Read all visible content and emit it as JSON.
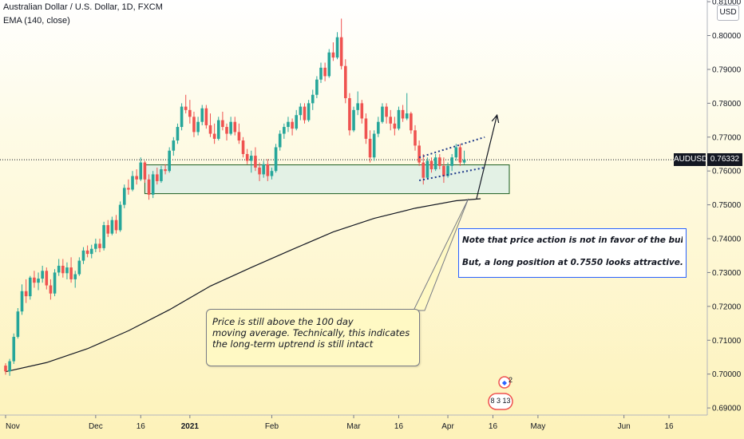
{
  "header": {
    "title": "Australian Dollar / U.S. Dollar, 1D, FXCM",
    "indicator": "EMA (140, close)",
    "currency_button": "USD"
  },
  "annotations": {
    "note_line1": "Note that price action is not in favor of the bulls.",
    "note_line2": "But, a long position at 0.7550 looks attractive.",
    "callout_line1": "Price is still above the 100 day",
    "callout_line2": "moving average. Technically, this indicates",
    "callout_line3": "the long-term uptrend is still intact"
  },
  "price_tag": {
    "symbol": "AUDUSD",
    "value": "0.76332"
  },
  "events": {
    "badge_top": "2",
    "badge_bottom": "8 3 13"
  },
  "colors": {
    "up": "#26a69a",
    "down": "#ef5350",
    "ema": "#131722",
    "zone_fill": "#e0efe6",
    "zone_border": "#1b5e20",
    "accent": "#2962ff"
  },
  "chart_data": {
    "type": "candlestick",
    "title": "Australian Dollar / U.S. Dollar, 1D, FXCM",
    "ylim": [
      0.6879,
      0.8105
    ],
    "y_ticks": [
      0.69,
      0.7,
      0.71,
      0.72,
      0.73,
      0.74,
      0.75,
      0.76,
      0.77,
      0.78,
      0.79,
      0.8,
      0.81
    ],
    "y_tick_labels": [
      "0.69000",
      "0.70000",
      "0.71000",
      "0.72000",
      "0.73000",
      "0.74000",
      "0.75000",
      "0.76000",
      "0.77000",
      "0.78000",
      "0.79000",
      "0.80000",
      "0.81000"
    ],
    "x_ticks": [
      {
        "label": "Nov",
        "bar": 0
      },
      {
        "label": "Dec",
        "bar": 22
      },
      {
        "label": "16",
        "bar": 33
      },
      {
        "label": "2021",
        "bar": 45
      },
      {
        "label": "Feb",
        "bar": 65
      },
      {
        "label": "Mar",
        "bar": 85
      },
      {
        "label": "16",
        "bar": 96
      },
      {
        "label": "Apr",
        "bar": 108
      },
      {
        "label": "16",
        "bar": 119
      },
      {
        "label": "May",
        "bar": 130
      },
      {
        "label": "Jun",
        "bar": 151
      },
      {
        "label": "16",
        "bar": 162
      }
    ],
    "last_price": 0.76332,
    "candles": [
      [
        0.7025,
        0.7032,
        0.6998,
        0.7008
      ],
      [
        0.7008,
        0.7045,
        0.6995,
        0.7038
      ],
      [
        0.7038,
        0.712,
        0.703,
        0.711
      ],
      [
        0.711,
        0.7195,
        0.7105,
        0.7185
      ],
      [
        0.7185,
        0.7265,
        0.7175,
        0.7245
      ],
      [
        0.7245,
        0.728,
        0.721,
        0.723
      ],
      [
        0.723,
        0.729,
        0.722,
        0.7285
      ],
      [
        0.7285,
        0.7305,
        0.7255,
        0.727
      ],
      [
        0.727,
        0.73,
        0.7248,
        0.7282
      ],
      [
        0.7282,
        0.732,
        0.727,
        0.7305
      ],
      [
        0.7305,
        0.7315,
        0.725,
        0.7262
      ],
      [
        0.7262,
        0.728,
        0.722,
        0.7238
      ],
      [
        0.7238,
        0.731,
        0.723,
        0.73
      ],
      [
        0.73,
        0.734,
        0.729,
        0.732
      ],
      [
        0.732,
        0.734,
        0.7285,
        0.7298
      ],
      [
        0.7298,
        0.733,
        0.728,
        0.7315
      ],
      [
        0.7315,
        0.7345,
        0.727,
        0.728
      ],
      [
        0.728,
        0.7305,
        0.7255,
        0.7295
      ],
      [
        0.7295,
        0.7345,
        0.729,
        0.7335
      ],
      [
        0.7335,
        0.7375,
        0.7325,
        0.7365
      ],
      [
        0.7365,
        0.738,
        0.7345,
        0.7355
      ],
      [
        0.7355,
        0.7382,
        0.7342,
        0.737
      ],
      [
        0.737,
        0.74,
        0.736,
        0.7385
      ],
      [
        0.7385,
        0.74,
        0.736,
        0.7372
      ],
      [
        0.7372,
        0.745,
        0.7365,
        0.744
      ],
      [
        0.744,
        0.7455,
        0.7405,
        0.7415
      ],
      [
        0.7415,
        0.7465,
        0.741,
        0.7455
      ],
      [
        0.7455,
        0.747,
        0.7415,
        0.7425
      ],
      [
        0.7425,
        0.751,
        0.742,
        0.75
      ],
      [
        0.75,
        0.756,
        0.749,
        0.755
      ],
      [
        0.755,
        0.7575,
        0.753,
        0.7545
      ],
      [
        0.7545,
        0.76,
        0.754,
        0.7585
      ],
      [
        0.7585,
        0.7605,
        0.756,
        0.7575
      ],
      [
        0.7575,
        0.764,
        0.757,
        0.7625
      ],
      [
        0.7625,
        0.763,
        0.7565,
        0.7575
      ],
      [
        0.7575,
        0.759,
        0.7515,
        0.753
      ],
      [
        0.753,
        0.76,
        0.752,
        0.759
      ],
      [
        0.759,
        0.761,
        0.756,
        0.757
      ],
      [
        0.757,
        0.7615,
        0.7565,
        0.7605
      ],
      [
        0.7605,
        0.762,
        0.759,
        0.76
      ],
      [
        0.76,
        0.767,
        0.7595,
        0.766
      ],
      [
        0.766,
        0.77,
        0.7645,
        0.769
      ],
      [
        0.769,
        0.774,
        0.768,
        0.773
      ],
      [
        0.773,
        0.78,
        0.772,
        0.779
      ],
      [
        0.779,
        0.7825,
        0.777,
        0.778
      ],
      [
        0.778,
        0.781,
        0.774,
        0.776
      ],
      [
        0.776,
        0.7775,
        0.77,
        0.7715
      ],
      [
        0.7715,
        0.776,
        0.7705,
        0.7745
      ],
      [
        0.7745,
        0.7795,
        0.7735,
        0.7785
      ],
      [
        0.7785,
        0.7795,
        0.7725,
        0.7735
      ],
      [
        0.7735,
        0.777,
        0.77,
        0.771
      ],
      [
        0.771,
        0.774,
        0.768,
        0.7695
      ],
      [
        0.7695,
        0.776,
        0.769,
        0.775
      ],
      [
        0.775,
        0.7775,
        0.772,
        0.773
      ],
      [
        0.773,
        0.774,
        0.769,
        0.771
      ],
      [
        0.771,
        0.776,
        0.7705,
        0.7745
      ],
      [
        0.7745,
        0.776,
        0.7705,
        0.7715
      ],
      [
        0.7715,
        0.774,
        0.768,
        0.769
      ],
      [
        0.769,
        0.77,
        0.764,
        0.765
      ],
      [
        0.765,
        0.7665,
        0.762,
        0.763
      ],
      [
        0.763,
        0.766,
        0.7595,
        0.7645
      ],
      [
        0.7645,
        0.767,
        0.76,
        0.761
      ],
      [
        0.761,
        0.7625,
        0.757,
        0.759
      ],
      [
        0.759,
        0.763,
        0.758,
        0.762
      ],
      [
        0.762,
        0.7635,
        0.757,
        0.7585
      ],
      [
        0.7585,
        0.761,
        0.7575,
        0.76
      ],
      [
        0.76,
        0.768,
        0.7595,
        0.767
      ],
      [
        0.767,
        0.772,
        0.766,
        0.771
      ],
      [
        0.771,
        0.774,
        0.7695,
        0.773
      ],
      [
        0.773,
        0.776,
        0.7715,
        0.7745
      ],
      [
        0.7745,
        0.7755,
        0.7705,
        0.7725
      ],
      [
        0.7725,
        0.778,
        0.772,
        0.7765
      ],
      [
        0.7765,
        0.78,
        0.775,
        0.779
      ],
      [
        0.779,
        0.78,
        0.774,
        0.775
      ],
      [
        0.775,
        0.781,
        0.7745,
        0.78
      ],
      [
        0.78,
        0.784,
        0.778,
        0.7825
      ],
      [
        0.7825,
        0.788,
        0.7815,
        0.787
      ],
      [
        0.787,
        0.792,
        0.786,
        0.7905
      ],
      [
        0.7905,
        0.792,
        0.7865,
        0.788
      ],
      [
        0.788,
        0.796,
        0.7875,
        0.795
      ],
      [
        0.795,
        0.798,
        0.7925,
        0.7935
      ],
      [
        0.7935,
        0.801,
        0.793,
        0.7995
      ],
      [
        0.7995,
        0.805,
        0.79,
        0.791
      ],
      [
        0.791,
        0.793,
        0.78,
        0.7815
      ],
      [
        0.7815,
        0.783,
        0.7705,
        0.772
      ],
      [
        0.772,
        0.779,
        0.7715,
        0.778
      ],
      [
        0.778,
        0.7835,
        0.7765,
        0.78
      ],
      [
        0.78,
        0.781,
        0.774,
        0.7755
      ],
      [
        0.7755,
        0.777,
        0.768,
        0.7695
      ],
      [
        0.7695,
        0.772,
        0.7625,
        0.764
      ],
      [
        0.764,
        0.772,
        0.763,
        0.771
      ],
      [
        0.771,
        0.776,
        0.77,
        0.7745
      ],
      [
        0.7745,
        0.78,
        0.774,
        0.779
      ],
      [
        0.779,
        0.78,
        0.774,
        0.776
      ],
      [
        0.776,
        0.778,
        0.772,
        0.774
      ],
      [
        0.774,
        0.776,
        0.7705,
        0.7725
      ],
      [
        0.7725,
        0.779,
        0.772,
        0.778
      ],
      [
        0.778,
        0.7795,
        0.7745,
        0.7755
      ],
      [
        0.7755,
        0.783,
        0.775,
        0.777
      ],
      [
        0.777,
        0.7775,
        0.771,
        0.772
      ],
      [
        0.772,
        0.7735,
        0.766,
        0.7675
      ],
      [
        0.7675,
        0.769,
        0.7615,
        0.7625
      ],
      [
        0.7625,
        0.765,
        0.756,
        0.758
      ],
      [
        0.758,
        0.764,
        0.7575,
        0.763
      ],
      [
        0.763,
        0.764,
        0.7595,
        0.7605
      ],
      [
        0.7605,
        0.765,
        0.76,
        0.764
      ],
      [
        0.764,
        0.765,
        0.7605,
        0.7615
      ],
      [
        0.7615,
        0.764,
        0.7565,
        0.7585
      ],
      [
        0.7585,
        0.7625,
        0.758,
        0.7615
      ],
      [
        0.7615,
        0.765,
        0.76,
        0.764
      ],
      [
        0.764,
        0.768,
        0.763,
        0.767
      ],
      [
        0.767,
        0.768,
        0.7615,
        0.7625
      ],
      [
        0.7625,
        0.766,
        0.762,
        0.7633
      ]
    ],
    "ema_140": [
      [
        0,
        0.7007
      ],
      [
        10,
        0.7034
      ],
      [
        20,
        0.7075
      ],
      [
        30,
        0.7128
      ],
      [
        40,
        0.719
      ],
      [
        50,
        0.726
      ],
      [
        60,
        0.7315
      ],
      [
        70,
        0.7368
      ],
      [
        80,
        0.742
      ],
      [
        90,
        0.746
      ],
      [
        100,
        0.749
      ],
      [
        110,
        0.7512
      ],
      [
        116,
        0.7518
      ]
    ],
    "support_zone": {
      "top": 0.7618,
      "bottom": 0.7533,
      "from_bar": 34,
      "to_bar": 123
    },
    "channel_upper": [
      [
        101,
        0.764
      ],
      [
        117,
        0.77
      ]
    ],
    "channel_lower": [
      [
        101,
        0.7572
      ],
      [
        117,
        0.761
      ]
    ],
    "projection_arrow": [
      [
        115,
        0.7518
      ],
      [
        120,
        0.7765
      ]
    ],
    "callout_pointer_bar": 113
  }
}
